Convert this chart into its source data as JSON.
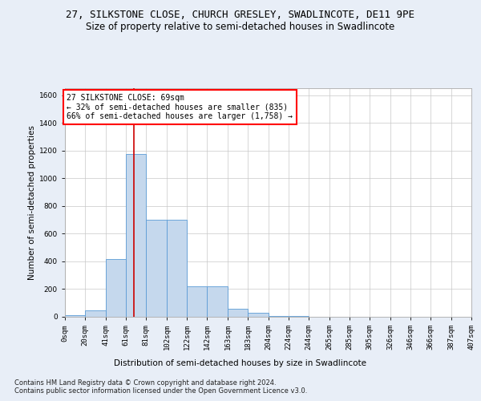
{
  "title_line1": "27, SILKSTONE CLOSE, CHURCH GRESLEY, SWADLINCOTE, DE11 9PE",
  "title_line2": "Size of property relative to semi-detached houses in Swadlincote",
  "xlabel": "Distribution of semi-detached houses by size in Swadlincote",
  "ylabel": "Number of semi-detached properties",
  "footnote1": "Contains HM Land Registry data © Crown copyright and database right 2024.",
  "footnote2": "Contains public sector information licensed under the Open Government Licence v3.0.",
  "annotation_line1": "27 SILKSTONE CLOSE: 69sqm",
  "annotation_line2": "← 32% of semi-detached houses are smaller (835)",
  "annotation_line3": "66% of semi-detached houses are larger (1,758) →",
  "property_size_sqm": 69,
  "bar_values": [
    10,
    45,
    415,
    1175,
    700,
    700,
    220,
    220,
    60,
    30,
    5,
    5,
    2,
    2,
    1,
    0,
    0,
    0,
    0,
    0
  ],
  "bin_edges": [
    0,
    20,
    41,
    61,
    81,
    102,
    122,
    142,
    163,
    183,
    204,
    224,
    244,
    265,
    285,
    305,
    326,
    346,
    366,
    387,
    407
  ],
  "bin_labels": [
    "0sqm",
    "20sqm",
    "41sqm",
    "61sqm",
    "81sqm",
    "102sqm",
    "122sqm",
    "142sqm",
    "163sqm",
    "183sqm",
    "204sqm",
    "224sqm",
    "244sqm",
    "265sqm",
    "285sqm",
    "305sqm",
    "326sqm",
    "346sqm",
    "366sqm",
    "387sqm",
    "407sqm"
  ],
  "bar_color": "#c5d8ed",
  "bar_edge_color": "#5b9bd5",
  "marker_color": "#cc0000",
  "ylim": [
    0,
    1650
  ],
  "yticks": [
    0,
    200,
    400,
    600,
    800,
    1000,
    1200,
    1400,
    1600
  ],
  "background_color": "#e8eef7",
  "plot_bg_color": "#ffffff",
  "grid_color": "#c8c8c8",
  "title1_fontsize": 9,
  "title2_fontsize": 8.5,
  "axis_label_fontsize": 7.5,
  "tick_fontsize": 6.5,
  "annotation_fontsize": 7,
  "footnote_fontsize": 6
}
